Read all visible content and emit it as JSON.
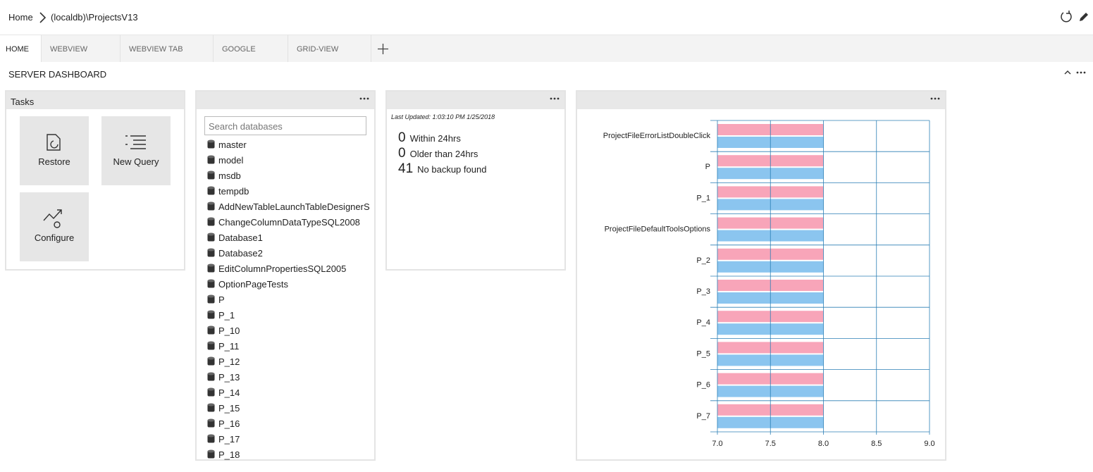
{
  "breadcrumb": {
    "home": "Home",
    "server": "(localdb)\\ProjectsV13"
  },
  "tabs": [
    "HOME",
    "WEBVIEW",
    "WEBVIEW TAB",
    "GOOGLE",
    "GRID-VIEW"
  ],
  "dashboard_title": "SERVER DASHBOARD",
  "tasks": {
    "title": "Tasks",
    "items": [
      "Restore",
      "New Query",
      "Configure"
    ]
  },
  "databases": {
    "search_placeholder": "Search databases",
    "items": [
      "master",
      "model",
      "msdb",
      "tempdb",
      "AddNewTableLaunchTableDesignerS",
      "ChangeColumnDataTypeSQL2008",
      "Database1",
      "Database2",
      "EditColumnPropertiesSQL2005",
      "OptionPageTests",
      "P",
      "P_1",
      "P_10",
      "P_11",
      "P_12",
      "P_13",
      "P_14",
      "P_15",
      "P_16",
      "P_17",
      "P_18"
    ]
  },
  "backup": {
    "last_updated": "Last Updated: 1:03:10 PM 1/25/2018",
    "rows": [
      {
        "count": 0,
        "label": "Within 24hrs"
      },
      {
        "count": 0,
        "label": "Older than 24hrs"
      },
      {
        "count": 41,
        "label": "No backup found"
      }
    ]
  },
  "chart_data": {
    "type": "bar",
    "orientation": "horizontal",
    "categories": [
      "ProjectFileErrorListDoubleClick",
      "P",
      "P_1",
      "ProjectFileDefaultToolsOptions",
      "P_2",
      "P_3",
      "P_4",
      "P_5",
      "P_6",
      "P_7"
    ],
    "series": [
      {
        "color": "#f8a5b9",
        "values": [
          8,
          8,
          8,
          8,
          8,
          8,
          8,
          8,
          8,
          8
        ]
      },
      {
        "color": "#8bc5ef",
        "values": [
          8,
          8,
          8,
          8,
          8,
          8,
          8,
          8,
          8,
          8
        ]
      }
    ],
    "xlim": [
      7,
      9
    ],
    "xticks": [
      {
        "value": 7,
        "label": "7.0"
      },
      7.5,
      {
        "value": 8,
        "label": "8.0"
      },
      8.5,
      {
        "value": 9,
        "label": "9.0"
      }
    ],
    "grid": true,
    "grid_color": "#2b7fb5"
  }
}
